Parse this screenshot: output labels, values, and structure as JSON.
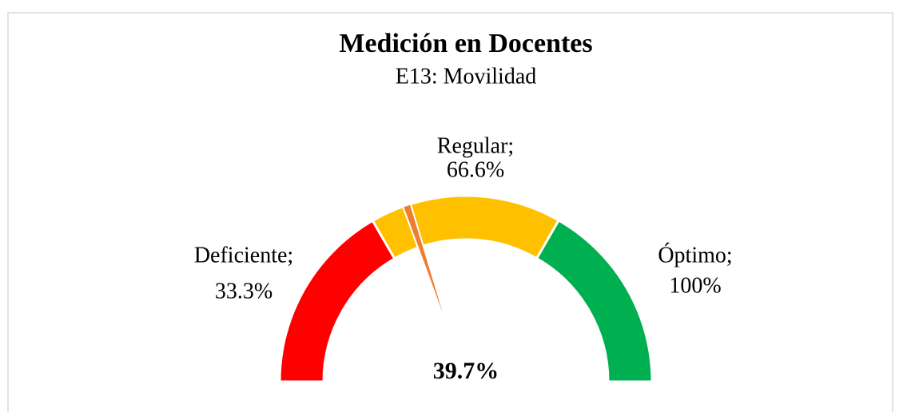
{
  "chart_data": {
    "type": "gauge",
    "title": "Medición en Docentes",
    "subtitle": "E13: Movilidad",
    "categories": [
      "Deficiente;",
      "Regular;",
      "Óptimo;"
    ],
    "values": [
      33.3,
      66.6,
      100
    ],
    "value_labels": [
      "33.3%",
      "66.6%",
      "100%"
    ],
    "colors": [
      "#ff0000",
      "#ffc000",
      "#00b050"
    ],
    "ylim": [
      0,
      100
    ],
    "needle": {
      "value": 39.7,
      "label": "39.7%",
      "color": "#ed7d31"
    }
  }
}
